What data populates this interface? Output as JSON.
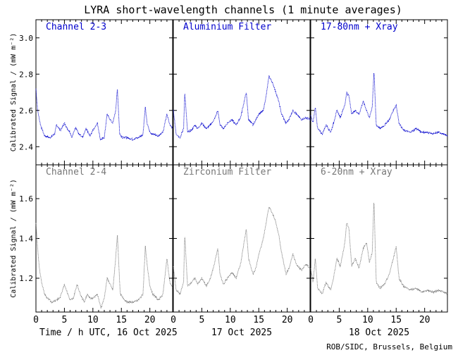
{
  "chart_data": {
    "type": "scatter",
    "title": "LYRA short-wavelength channels (1 minute averages)",
    "xlabel_days": [
      "Time / h UTC, 16 Oct 2025",
      "17 Oct 2025",
      "18 Oct 2025"
    ],
    "xticks": [
      0,
      5,
      10,
      15,
      20
    ],
    "xlim": [
      0,
      24
    ],
    "ylabel": "Calibrated Signal / (mW m⁻²)",
    "credit": "ROB/SIDC, Brussels, Belgium",
    "rows": [
      {
        "color": "#0000cc",
        "ylim": [
          2.3,
          3.1
        ],
        "yticks": [
          2.4,
          2.6,
          2.8,
          3.0
        ],
        "ytick_labels": [
          "2.4",
          "2.6",
          "2.8",
          "3.0"
        ],
        "panels": [
          {
            "name": "Channel 2-3",
            "points": [
              [
                0,
                2.72
              ],
              [
                0.3,
                2.6
              ],
              [
                0.8,
                2.52
              ],
              [
                1.5,
                2.46
              ],
              [
                2.5,
                2.45
              ],
              [
                3.3,
                2.47
              ],
              [
                3.6,
                2.52
              ],
              [
                4.3,
                2.49
              ],
              [
                5,
                2.53
              ],
              [
                5.5,
                2.5
              ],
              [
                6,
                2.48
              ],
              [
                6.3,
                2.45
              ],
              [
                7,
                2.51
              ],
              [
                7.5,
                2.47
              ],
              [
                8.2,
                2.45
              ],
              [
                8.8,
                2.5
              ],
              [
                9.5,
                2.46
              ],
              [
                10,
                2.49
              ],
              [
                10.8,
                2.53
              ],
              [
                11.3,
                2.44
              ],
              [
                12,
                2.45
              ],
              [
                12.5,
                2.58
              ],
              [
                13,
                2.55
              ],
              [
                13.5,
                2.53
              ],
              [
                14,
                2.6
              ],
              [
                14.3,
                2.72
              ],
              [
                14.7,
                2.47
              ],
              [
                15.2,
                2.45
              ],
              [
                16,
                2.45
              ],
              [
                17,
                2.44
              ],
              [
                18,
                2.45
              ],
              [
                18.8,
                2.47
              ],
              [
                19.2,
                2.62
              ],
              [
                19.5,
                2.53
              ],
              [
                20,
                2.48
              ],
              [
                20.5,
                2.47
              ],
              [
                21.5,
                2.46
              ],
              [
                22.3,
                2.48
              ],
              [
                23,
                2.58
              ],
              [
                23.5,
                2.52
              ],
              [
                24,
                2.5
              ]
            ]
          },
          {
            "name": "Aluminium Filter",
            "points": [
              [
                0,
                2.6
              ],
              [
                0.5,
                2.47
              ],
              [
                1.2,
                2.45
              ],
              [
                1.8,
                2.5
              ],
              [
                2,
                2.7
              ],
              [
                2.5,
                2.48
              ],
              [
                3.2,
                2.49
              ],
              [
                3.8,
                2.52
              ],
              [
                4.3,
                2.5
              ],
              [
                5,
                2.53
              ],
              [
                5.8,
                2.5
              ],
              [
                6.5,
                2.52
              ],
              [
                7.2,
                2.55
              ],
              [
                7.8,
                2.6
              ],
              [
                8.2,
                2.52
              ],
              [
                8.8,
                2.5
              ],
              [
                9.5,
                2.53
              ],
              [
                10.3,
                2.55
              ],
              [
                11,
                2.52
              ],
              [
                11.8,
                2.56
              ],
              [
                12.8,
                2.7
              ],
              [
                13.2,
                2.55
              ],
              [
                14,
                2.52
              ],
              [
                14.5,
                2.55
              ],
              [
                15,
                2.58
              ],
              [
                15.8,
                2.6
              ],
              [
                16.3,
                2.68
              ],
              [
                16.8,
                2.79
              ],
              [
                17.3,
                2.76
              ],
              [
                17.8,
                2.72
              ],
              [
                18.5,
                2.65
              ],
              [
                19,
                2.58
              ],
              [
                19.8,
                2.53
              ],
              [
                20.3,
                2.55
              ],
              [
                21,
                2.6
              ],
              [
                21.6,
                2.58
              ],
              [
                22.5,
                2.55
              ],
              [
                23.3,
                2.56
              ],
              [
                24,
                2.55
              ]
            ]
          },
          {
            "name": "17-80nm + Xray",
            "points": [
              [
                0,
                2.57
              ],
              [
                0.4,
                2.53
              ],
              [
                0.8,
                2.62
              ],
              [
                1.2,
                2.5
              ],
              [
                2,
                2.47
              ],
              [
                2.7,
                2.52
              ],
              [
                3.5,
                2.48
              ],
              [
                4,
                2.53
              ],
              [
                4.6,
                2.6
              ],
              [
                5.2,
                2.56
              ],
              [
                5.6,
                2.6
              ],
              [
                6,
                2.63
              ],
              [
                6.3,
                2.7
              ],
              [
                6.7,
                2.68
              ],
              [
                7.2,
                2.58
              ],
              [
                7.8,
                2.6
              ],
              [
                8.5,
                2.58
              ],
              [
                9.2,
                2.65
              ],
              [
                9.8,
                2.6
              ],
              [
                10.3,
                2.56
              ],
              [
                10.8,
                2.62
              ],
              [
                11.1,
                2.82
              ],
              [
                11.5,
                2.52
              ],
              [
                12.2,
                2.5
              ],
              [
                13,
                2.52
              ],
              [
                13.8,
                2.55
              ],
              [
                14.5,
                2.6
              ],
              [
                15,
                2.63
              ],
              [
                15.5,
                2.53
              ],
              [
                16.3,
                2.49
              ],
              [
                17.5,
                2.48
              ],
              [
                18.5,
                2.5
              ],
              [
                19.5,
                2.48
              ],
              [
                20.5,
                2.48
              ],
              [
                21.5,
                2.47
              ],
              [
                22.5,
                2.48
              ],
              [
                23.3,
                2.47
              ],
              [
                24,
                2.46
              ]
            ]
          }
        ]
      },
      {
        "color": "#777777",
        "ylim": [
          1.03,
          1.77
        ],
        "yticks": [
          1.2,
          1.4,
          1.6
        ],
        "ytick_labels": [
          "1.2",
          "1.4",
          "1.6"
        ],
        "panels": [
          {
            "name": "Channel 2-4",
            "points": [
              [
                0,
                1.48
              ],
              [
                0.3,
                1.35
              ],
              [
                0.6,
                1.25
              ],
              [
                1,
                1.18
              ],
              [
                1.5,
                1.12
              ],
              [
                2,
                1.1
              ],
              [
                2.8,
                1.08
              ],
              [
                3.5,
                1.09
              ],
              [
                4.2,
                1.1
              ],
              [
                5,
                1.17
              ],
              [
                5.6,
                1.12
              ],
              [
                6,
                1.09
              ],
              [
                6.6,
                1.1
              ],
              [
                7.2,
                1.17
              ],
              [
                7.8,
                1.12
              ],
              [
                8.5,
                1.08
              ],
              [
                9,
                1.12
              ],
              [
                9.5,
                1.1
              ],
              [
                10,
                1.1
              ],
              [
                10.8,
                1.12
              ],
              [
                11.4,
                1.05
              ],
              [
                12,
                1.1
              ],
              [
                12.5,
                1.2
              ],
              [
                13,
                1.17
              ],
              [
                13.5,
                1.14
              ],
              [
                14,
                1.3
              ],
              [
                14.3,
                1.42
              ],
              [
                14.8,
                1.12
              ],
              [
                15.3,
                1.1
              ],
              [
                16,
                1.08
              ],
              [
                17,
                1.08
              ],
              [
                18,
                1.09
              ],
              [
                18.8,
                1.12
              ],
              [
                19.2,
                1.36
              ],
              [
                19.6,
                1.25
              ],
              [
                20,
                1.16
              ],
              [
                20.5,
                1.12
              ],
              [
                21.5,
                1.09
              ],
              [
                22.3,
                1.12
              ],
              [
                23,
                1.3
              ],
              [
                23.5,
                1.18
              ],
              [
                24,
                1.15
              ]
            ]
          },
          {
            "name": "Zirconium Filter",
            "points": [
              [
                0,
                1.26
              ],
              [
                0.5,
                1.14
              ],
              [
                1.2,
                1.12
              ],
              [
                1.8,
                1.18
              ],
              [
                2,
                1.42
              ],
              [
                2.5,
                1.16
              ],
              [
                3.2,
                1.18
              ],
              [
                3.8,
                1.2
              ],
              [
                4.3,
                1.17
              ],
              [
                5,
                1.2
              ],
              [
                5.8,
                1.16
              ],
              [
                6.5,
                1.2
              ],
              [
                7.2,
                1.27
              ],
              [
                7.8,
                1.35
              ],
              [
                8.2,
                1.22
              ],
              [
                8.8,
                1.17
              ],
              [
                9.5,
                1.2
              ],
              [
                10.3,
                1.23
              ],
              [
                11,
                1.2
              ],
              [
                11.8,
                1.27
              ],
              [
                12.8,
                1.45
              ],
              [
                13.2,
                1.3
              ],
              [
                14,
                1.22
              ],
              [
                14.5,
                1.25
              ],
              [
                15,
                1.32
              ],
              [
                15.8,
                1.4
              ],
              [
                16.3,
                1.48
              ],
              [
                16.8,
                1.56
              ],
              [
                17.3,
                1.53
              ],
              [
                17.8,
                1.5
              ],
              [
                18.5,
                1.42
              ],
              [
                19,
                1.33
              ],
              [
                19.8,
                1.22
              ],
              [
                20.3,
                1.25
              ],
              [
                21,
                1.32
              ],
              [
                21.6,
                1.27
              ],
              [
                22.5,
                1.24
              ],
              [
                23.3,
                1.27
              ],
              [
                24,
                1.25
              ]
            ]
          },
          {
            "name": "6-20nm + Xray",
            "points": [
              [
                0,
                1.25
              ],
              [
                0.4,
                1.18
              ],
              [
                0.8,
                1.3
              ],
              [
                1.2,
                1.15
              ],
              [
                2,
                1.12
              ],
              [
                2.7,
                1.18
              ],
              [
                3.5,
                1.14
              ],
              [
                4,
                1.2
              ],
              [
                4.6,
                1.3
              ],
              [
                5.2,
                1.26
              ],
              [
                5.6,
                1.32
              ],
              [
                6,
                1.38
              ],
              [
                6.3,
                1.48
              ],
              [
                6.7,
                1.45
              ],
              [
                7.2,
                1.26
              ],
              [
                7.8,
                1.3
              ],
              [
                8.5,
                1.25
              ],
              [
                9.2,
                1.35
              ],
              [
                9.8,
                1.38
              ],
              [
                10.3,
                1.28
              ],
              [
                10.8,
                1.33
              ],
              [
                11.1,
                1.6
              ],
              [
                11.5,
                1.18
              ],
              [
                12.2,
                1.15
              ],
              [
                13,
                1.17
              ],
              [
                13.8,
                1.22
              ],
              [
                14.5,
                1.3
              ],
              [
                15,
                1.36
              ],
              [
                15.5,
                1.2
              ],
              [
                16.3,
                1.16
              ],
              [
                17.5,
                1.14
              ],
              [
                18.5,
                1.15
              ],
              [
                19.5,
                1.13
              ],
              [
                20.5,
                1.14
              ],
              [
                21.5,
                1.13
              ],
              [
                22.5,
                1.14
              ],
              [
                23.3,
                1.13
              ],
              [
                24,
                1.12
              ]
            ]
          }
        ]
      }
    ]
  }
}
